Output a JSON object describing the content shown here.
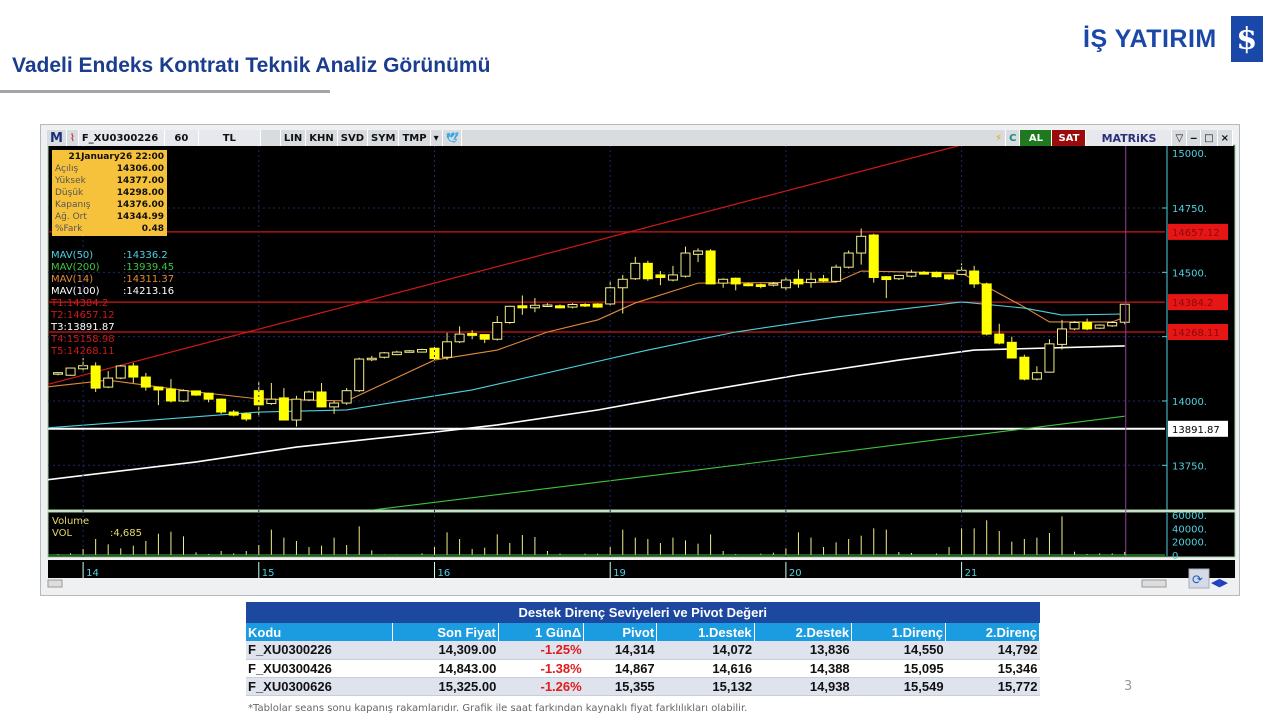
{
  "page": {
    "title": "Vadeli Endeks Kontratı Teknik Analiz Görünümü",
    "logo_text": "İŞ YATIRIM",
    "logo_mark": "$",
    "page_number": "3",
    "footnote": "*Tablolar seans sonu kapanış rakamlarıdır. Grafik ile saat farkından kaynaklı fiyat farklılıkları olabilir."
  },
  "toolbar": {
    "m": "M",
    "symbol": "F_XU0300226",
    "period": "60",
    "currency": "TL",
    "buttons": [
      "LIN",
      "KHN",
      "SVD",
      "SYM",
      "TMP"
    ],
    "al": "AL",
    "sat": "SAT",
    "brand": "MATRiKS",
    "refresh": "C"
  },
  "info": {
    "date": "21January26 22:00",
    "rows": [
      {
        "k": "Açılış",
        "v": "14306.00"
      },
      {
        "k": "Yüksek",
        "v": "14377.00"
      },
      {
        "k": "Düşük",
        "v": "14298.00"
      },
      {
        "k": "Kapanış",
        "v": "14376.00"
      },
      {
        "k": "Ağ. Ort",
        "v": "14344.99"
      },
      {
        "k": "%Fark",
        "v": "0.48"
      }
    ]
  },
  "legend": [
    {
      "label": "MAV(50)",
      "value": ":14336.2",
      "color": "#4fd0e0"
    },
    {
      "label": "MAV(200)",
      "value": ":13939.45",
      "color": "#3ec43e"
    },
    {
      "label": "MAV(14)",
      "value": ":14311.37",
      "color": "#e08a3c"
    },
    {
      "label": "MAV(100)",
      "value": ":14213.16",
      "color": "#ffffff"
    },
    {
      "label": "T1:14384.2",
      "value": "",
      "color": "#d01818"
    },
    {
      "label": "T2:14657.12",
      "value": "",
      "color": "#d01818"
    },
    {
      "label": "T3:13891.87",
      "value": "",
      "color": "#ffffff"
    },
    {
      "label": "T4:15158.98",
      "value": "",
      "color": "#d01818"
    },
    {
      "label": "T5:14268.11",
      "value": "",
      "color": "#d01818"
    }
  ],
  "chart_data": {
    "type": "candlestick",
    "x_tick_labels": [
      {
        "bar": 2,
        "label": "14"
      },
      {
        "bar": 16,
        "label": "15"
      },
      {
        "bar": 30,
        "label": "16"
      },
      {
        "bar": 44,
        "label": "19"
      },
      {
        "bar": 58,
        "label": "20"
      },
      {
        "bar": 72,
        "label": "21"
      }
    ],
    "y_tick_labels": [
      "15000.",
      "14750.",
      "14500.",
      "14000.",
      "13750."
    ],
    "y_ticks": [
      15000,
      14750,
      14500,
      14250,
      14000,
      13750
    ],
    "ylim": [
      13570,
      15010
    ],
    "ohlc": [
      [
        14105,
        14112,
        14100,
        14110
      ],
      [
        14100,
        14130,
        14098,
        14128
      ],
      [
        14125,
        14167,
        14112,
        14137
      ],
      [
        14136,
        14150,
        14035,
        14050
      ],
      [
        14054,
        14116,
        14050,
        14089
      ],
      [
        14089,
        14140,
        14085,
        14136
      ],
      [
        14136,
        14148,
        14070,
        14093
      ],
      [
        14093,
        14109,
        14040,
        14054
      ],
      [
        14054,
        14056,
        13984,
        14043
      ],
      [
        14046,
        14085,
        13994,
        14000
      ],
      [
        14000,
        14045,
        13996,
        14040
      ],
      [
        14039,
        14040,
        14020,
        14023
      ],
      [
        14030,
        14032,
        13995,
        14007
      ],
      [
        14007,
        14010,
        13950,
        13957
      ],
      [
        13957,
        13965,
        13940,
        13945
      ],
      [
        13950,
        13955,
        13922,
        13930
      ],
      [
        14040,
        14073,
        13938,
        13985
      ],
      [
        13990,
        14070,
        13985,
        14007
      ],
      [
        14012,
        14050,
        13926,
        13926
      ],
      [
        13926,
        14020,
        13900,
        14007
      ],
      [
        14004,
        14040,
        14000,
        14035
      ],
      [
        14035,
        14070,
        13975,
        13977
      ],
      [
        13977,
        14000,
        13950,
        13992
      ],
      [
        13992,
        14050,
        13985,
        14040
      ],
      [
        14040,
        14168,
        14035,
        14163
      ],
      [
        14163,
        14175,
        14155,
        14166
      ],
      [
        14170,
        14190,
        14165,
        14187
      ],
      [
        14180,
        14195,
        14178,
        14190
      ],
      [
        14193,
        14198,
        14190,
        14195
      ],
      [
        14190,
        14203,
        14188,
        14200
      ],
      [
        14205,
        14215,
        14150,
        14165
      ],
      [
        14170,
        14265,
        14160,
        14230
      ],
      [
        14230,
        14290,
        14225,
        14260
      ],
      [
        14262,
        14275,
        14240,
        14255
      ],
      [
        14258,
        14260,
        14225,
        14240
      ],
      [
        14240,
        14330,
        14235,
        14305
      ],
      [
        14305,
        14370,
        14300,
        14368
      ],
      [
        14370,
        14410,
        14335,
        14362
      ],
      [
        14362,
        14400,
        14345,
        14372
      ],
      [
        14372,
        14380,
        14365,
        14373
      ],
      [
        14370,
        14375,
        14360,
        14362
      ],
      [
        14365,
        14380,
        14360,
        14375
      ],
      [
        14375,
        14380,
        14365,
        14370
      ],
      [
        14377,
        14380,
        14362,
        14365
      ],
      [
        14377,
        14465,
        14370,
        14440
      ],
      [
        14440,
        14490,
        14340,
        14473
      ],
      [
        14475,
        14560,
        14470,
        14535
      ],
      [
        14535,
        14545,
        14467,
        14475
      ],
      [
        14490,
        14505,
        14450,
        14480
      ],
      [
        14470,
        14525,
        14465,
        14490
      ],
      [
        14485,
        14600,
        14480,
        14575
      ],
      [
        14570,
        14593,
        14540,
        14583
      ],
      [
        14583,
        14590,
        14455,
        14455
      ],
      [
        14458,
        14477,
        14440,
        14473
      ],
      [
        14477,
        14480,
        14430,
        14455
      ],
      [
        14455,
        14460,
        14445,
        14448
      ],
      [
        14452,
        14456,
        14438,
        14445
      ],
      [
        14455,
        14462,
        14445,
        14456
      ],
      [
        14440,
        14480,
        14430,
        14470
      ],
      [
        14473,
        14510,
        14440,
        14455
      ],
      [
        14460,
        14500,
        14440,
        14473
      ],
      [
        14475,
        14490,
        14462,
        14467
      ],
      [
        14465,
        14530,
        14460,
        14520
      ],
      [
        14520,
        14585,
        14515,
        14575
      ],
      [
        14575,
        14670,
        14530,
        14640
      ],
      [
        14645,
        14650,
        14460,
        14480
      ],
      [
        14483,
        14485,
        14400,
        14472
      ],
      [
        14475,
        14490,
        14470,
        14488
      ],
      [
        14485,
        14510,
        14480,
        14500
      ],
      [
        14500,
        14505,
        14495,
        14493
      ],
      [
        14500,
        14503,
        14480,
        14483
      ],
      [
        14490,
        14492,
        14470,
        14475
      ],
      [
        14492,
        14535,
        14490,
        14508
      ],
      [
        14505,
        14525,
        14440,
        14455
      ],
      [
        14455,
        14460,
        14255,
        14260
      ],
      [
        14260,
        14300,
        14220,
        14225
      ],
      [
        14228,
        14250,
        14165,
        14167
      ],
      [
        14170,
        14180,
        14080,
        14085
      ],
      [
        14085,
        14135,
        14080,
        14110
      ],
      [
        14112,
        14240,
        14110,
        14222
      ],
      [
        14220,
        14315,
        14200,
        14280
      ],
      [
        14280,
        14310,
        14275,
        14305
      ],
      [
        14305,
        14320,
        14275,
        14280
      ],
      [
        14283,
        14298,
        14280,
        14295
      ],
      [
        14292,
        14310,
        14288,
        14305
      ],
      [
        14306,
        14377,
        14298,
        14376
      ]
    ],
    "moving_averages": [
      {
        "name": "MAV(14)",
        "color": "#e08a3c",
        "points": [
          [
            -1,
            14054
          ],
          [
            4,
            14081
          ],
          [
            11,
            14035
          ],
          [
            16,
            14008
          ],
          [
            23,
            14000
          ],
          [
            30,
            14159
          ],
          [
            35,
            14198
          ],
          [
            39,
            14268
          ],
          [
            43,
            14315
          ],
          [
            46,
            14381
          ],
          [
            51,
            14458
          ],
          [
            62,
            14462
          ],
          [
            64,
            14505
          ],
          [
            72,
            14497
          ],
          [
            77,
            14365
          ],
          [
            79,
            14307
          ],
          [
            84,
            14307
          ],
          [
            85,
            14326
          ]
        ]
      },
      {
        "name": "MAV(50)",
        "color": "#4fd0e0",
        "points": [
          [
            -1,
            13895
          ],
          [
            16,
            13957
          ],
          [
            23,
            13965
          ],
          [
            33,
            14043
          ],
          [
            47,
            14198
          ],
          [
            54,
            14268
          ],
          [
            61,
            14319
          ],
          [
            62,
            14326
          ],
          [
            72,
            14385
          ],
          [
            77,
            14361
          ],
          [
            80,
            14334
          ],
          [
            85,
            14338
          ]
        ]
      },
      {
        "name": "MAV(100)",
        "color": "#ffffff",
        "points": [
          [
            -1,
            13693
          ],
          [
            11,
            13763
          ],
          [
            19,
            13821
          ],
          [
            30,
            13879
          ],
          [
            35,
            13907
          ],
          [
            43,
            13965
          ],
          [
            51,
            14035
          ],
          [
            59,
            14101
          ],
          [
            67,
            14159
          ],
          [
            73,
            14198
          ],
          [
            85,
            14214
          ]
        ]
      },
      {
        "name": "MAV(200)",
        "color": "#3ec43e",
        "points": [
          [
            25,
            13576
          ],
          [
            51,
            13732
          ],
          [
            85,
            13941
          ]
        ]
      }
    ],
    "horizontal_lines": [
      {
        "label": "T1",
        "value": 14384.2,
        "color": "#d01818",
        "tag": "14384.2"
      },
      {
        "label": "T2",
        "value": 14657.12,
        "color": "#d01818",
        "tag": "14657.12"
      },
      {
        "label": "T3",
        "value": 13891.87,
        "color": "#ffffff",
        "tag": "13891.87"
      },
      {
        "label": "T5",
        "value": 14268.11,
        "color": "#d01818",
        "tag": "14268.11"
      }
    ],
    "trend_line": {
      "color": "#d01818",
      "points": [
        [
          -1,
          14062
        ],
        [
          72,
          14995
        ]
      ]
    },
    "volume": {
      "label": "Volume",
      "series": "VOL",
      "last": ":4,685",
      "y_tick_labels": [
        "60000.",
        "40000.",
        "20000.",
        "0"
      ],
      "ylim": [
        0,
        60000
      ],
      "values": [
        1500,
        2500,
        9000,
        24000,
        16000,
        10000,
        14000,
        21000,
        32000,
        35000,
        28000,
        4000,
        1500,
        6000,
        2500,
        6000,
        15000,
        38000,
        26000,
        21000,
        12000,
        14000,
        26000,
        15000,
        43000,
        7000,
        1000,
        1000,
        500,
        2500,
        12000,
        34000,
        24000,
        9000,
        11000,
        31000,
        18000,
        30000,
        27000,
        6000,
        2000,
        500,
        2000,
        2000,
        12000,
        38000,
        26000,
        24000,
        18000,
        26000,
        22000,
        17000,
        31000,
        6000,
        1500,
        500,
        2000,
        3500,
        10000,
        34000,
        26000,
        12000,
        19000,
        24000,
        29000,
        40000,
        38000,
        4500,
        3000,
        500,
        2000,
        12000,
        40000,
        40000,
        52000,
        36000,
        20000,
        24000,
        26000,
        33000,
        58000,
        5000,
        1500,
        2500,
        2500,
        4685
      ]
    }
  },
  "table": {
    "title": "Destek Direnç Seviyeleri ve Pivot Değeri",
    "headers": [
      "Kodu",
      "Son Fiyat",
      "1 GünΔ",
      "Pivot",
      "1.Destek",
      "2.Destek",
      "1.Direnç",
      "2.Direnç"
    ],
    "rows": [
      [
        "F_XU0300226",
        "14,309.00",
        "-1.25%",
        "14,314",
        "14,072",
        "13,836",
        "14,550",
        "14,792"
      ],
      [
        "F_XU0300426",
        "14,843.00",
        "-1.38%",
        "14,867",
        "14,616",
        "14,388",
        "15,095",
        "15,346"
      ],
      [
        "F_XU0300626",
        "15,325.00",
        "-1.26%",
        "15,355",
        "15,132",
        "14,938",
        "15,549",
        "15,772"
      ]
    ]
  }
}
